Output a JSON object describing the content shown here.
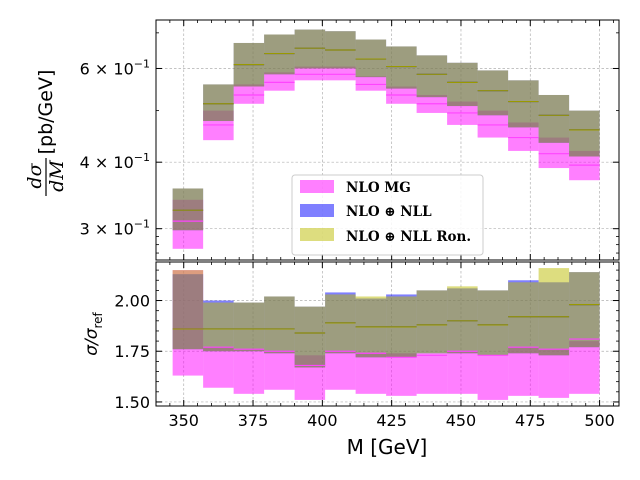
{
  "chart_data": {
    "type": "area",
    "x_edges": [
      346,
      357,
      368,
      379,
      390,
      401,
      412,
      423,
      434,
      445,
      456,
      467,
      478,
      489,
      500
    ],
    "xlabel": "M [GeV]",
    "xlim": [
      340,
      507
    ],
    "xticks": [
      350,
      375,
      400,
      425,
      450,
      475,
      500
    ],
    "xtick_labels": [
      "350",
      "375",
      "400",
      "425",
      "450",
      "475",
      "500"
    ],
    "grid": true,
    "legend_position": "lower-center",
    "upper_panel": {
      "ylabel": "dσ/dM [pb/GeV]",
      "ylabel_num": "dσ",
      "ylabel_den": "dM",
      "ylabel_unit": "[pb/GeV]",
      "yscale": "log",
      "ylim": [
        0.262,
        0.74
      ],
      "ytick_values": [
        0.3,
        0.4,
        0.6
      ],
      "ytick_labels": [
        "3 × 10⁻¹",
        "4 × 10⁻¹",
        "6 × 10⁻¹"
      ],
      "ytick_base": "10",
      "ytick_exp": "−1",
      "ytick_mantissas": [
        "3",
        "4",
        "6"
      ],
      "series": [
        {
          "name": "NLO MG",
          "color": "#ff00ff",
          "alpha": 0.5,
          "low": [
            0.275,
            0.44,
            0.515,
            0.545,
            0.57,
            0.57,
            0.545,
            0.515,
            0.495,
            0.47,
            0.445,
            0.42,
            0.39,
            0.37,
            0.34
          ],
          "high": [
            0.34,
            0.5,
            0.56,
            0.59,
            0.605,
            0.605,
            0.58,
            0.555,
            0.535,
            0.52,
            0.5,
            0.475,
            0.445,
            0.42,
            0.39
          ]
        },
        {
          "name": "NLO ⊕ NLL",
          "color": "#0000ff",
          "alpha": 0.5,
          "low": [
            0.298,
            0.478,
            0.555,
            0.585,
            0.6,
            0.6,
            0.578,
            0.55,
            0.53,
            0.51,
            0.49,
            0.465,
            0.435,
            0.41,
            0.38
          ],
          "high": [
            0.357,
            0.56,
            0.67,
            0.695,
            0.71,
            0.705,
            0.68,
            0.66,
            0.635,
            0.615,
            0.595,
            0.57,
            0.535,
            0.5,
            0.46
          ]
        },
        {
          "name": "NLO ⊕ NLL Ron.",
          "color": "#bbbb00",
          "alpha": 0.5,
          "low": [
            0.298,
            0.478,
            0.555,
            0.585,
            0.6,
            0.6,
            0.578,
            0.55,
            0.53,
            0.51,
            0.49,
            0.465,
            0.435,
            0.41,
            0.38
          ],
          "high": [
            0.357,
            0.56,
            0.67,
            0.695,
            0.71,
            0.705,
            0.68,
            0.66,
            0.635,
            0.615,
            0.595,
            0.57,
            0.535,
            0.5,
            0.46
          ]
        }
      ],
      "central_lines": [
        {
          "color": "#ff44ff",
          "values": [
            0.31,
            0.47,
            0.535,
            0.565,
            0.585,
            0.585,
            0.56,
            0.535,
            0.515,
            0.495,
            0.47,
            0.445,
            0.415,
            0.395,
            0.365
          ]
        },
        {
          "color": "#3333cc",
          "values": [
            0.325,
            0.515,
            0.61,
            0.64,
            0.655,
            0.65,
            0.625,
            0.605,
            0.585,
            0.565,
            0.545,
            0.52,
            0.49,
            0.46,
            0.42
          ]
        },
        {
          "color": "#999900",
          "values": [
            0.325,
            0.515,
            0.61,
            0.64,
            0.655,
            0.65,
            0.625,
            0.605,
            0.585,
            0.565,
            0.545,
            0.52,
            0.49,
            0.46,
            0.42
          ]
        }
      ]
    },
    "lower_panel": {
      "ylabel": "σ/σref",
      "ylabel_base": "σ/σ",
      "ylabel_sub": "ref",
      "ylim": [
        1.48,
        2.19
      ],
      "yticks": [
        1.5,
        1.75,
        2.0
      ],
      "ytick_labels": [
        "1.50",
        "1.75",
        "2.00"
      ],
      "series": [
        {
          "name": "NLO MG",
          "color": "#ff00ff",
          "alpha": 0.5,
          "low": [
            1.63,
            1.57,
            1.54,
            1.56,
            1.51,
            1.56,
            1.54,
            1.53,
            1.54,
            1.54,
            1.51,
            1.53,
            1.52,
            1.54,
            1.55
          ],
          "high": [
            2.15,
            1.77,
            1.76,
            1.75,
            1.73,
            1.75,
            1.74,
            1.74,
            1.74,
            1.75,
            1.73,
            1.77,
            1.76,
            1.8,
            1.77
          ]
        },
        {
          "name": "NLO ⊕ NLL",
          "color": "#0000ff",
          "alpha": 0.5,
          "low": [
            1.76,
            1.75,
            1.75,
            1.74,
            1.67,
            1.74,
            1.72,
            1.72,
            1.74,
            1.74,
            1.73,
            1.74,
            1.73,
            1.77,
            1.74
          ],
          "high": [
            2.13,
            2.0,
            1.99,
            2.02,
            1.97,
            2.04,
            2.01,
            2.03,
            2.05,
            2.06,
            2.05,
            2.1,
            2.09,
            2.14,
            2.12
          ]
        },
        {
          "name": "NLO ⊕ NLL Ron.",
          "color": "#bbbb00",
          "alpha": 0.5,
          "low": [
            1.76,
            1.75,
            1.75,
            1.74,
            1.67,
            1.74,
            1.72,
            1.72,
            1.74,
            1.74,
            1.73,
            1.74,
            1.73,
            1.77,
            1.74
          ],
          "high": [
            2.15,
            1.99,
            1.99,
            2.02,
            1.97,
            2.03,
            2.02,
            2.02,
            2.05,
            2.07,
            2.05,
            2.09,
            2.16,
            2.14,
            2.13
          ]
        }
      ],
      "central_lines": [
        {
          "color": "#ff44ff",
          "values": [
            1.86,
            1.77,
            1.76,
            1.75,
            1.68,
            1.75,
            1.74,
            1.72,
            1.73,
            1.75,
            1.73,
            1.77,
            1.76,
            1.81,
            1.77
          ]
        },
        {
          "color": "#3333cc",
          "values": [
            1.86,
            1.86,
            1.86,
            1.86,
            1.84,
            1.89,
            1.87,
            1.87,
            1.88,
            1.9,
            1.88,
            1.92,
            1.92,
            1.98,
            1.96
          ]
        },
        {
          "color": "#999900",
          "values": [
            1.86,
            1.86,
            1.86,
            1.86,
            1.84,
            1.89,
            1.87,
            1.87,
            1.88,
            1.9,
            1.88,
            1.92,
            1.92,
            1.98,
            1.96
          ]
        }
      ]
    }
  },
  "legend": {
    "items": [
      {
        "label": "NLO MG",
        "color": "#ff00ff",
        "alpha": 0.5
      },
      {
        "label": "NLO ⊕ NLL",
        "color": "#0000ff",
        "alpha": 0.5
      },
      {
        "label": "NLO ⊕ NLL Ron.",
        "color": "#bbbb00",
        "alpha": 0.5
      }
    ]
  }
}
